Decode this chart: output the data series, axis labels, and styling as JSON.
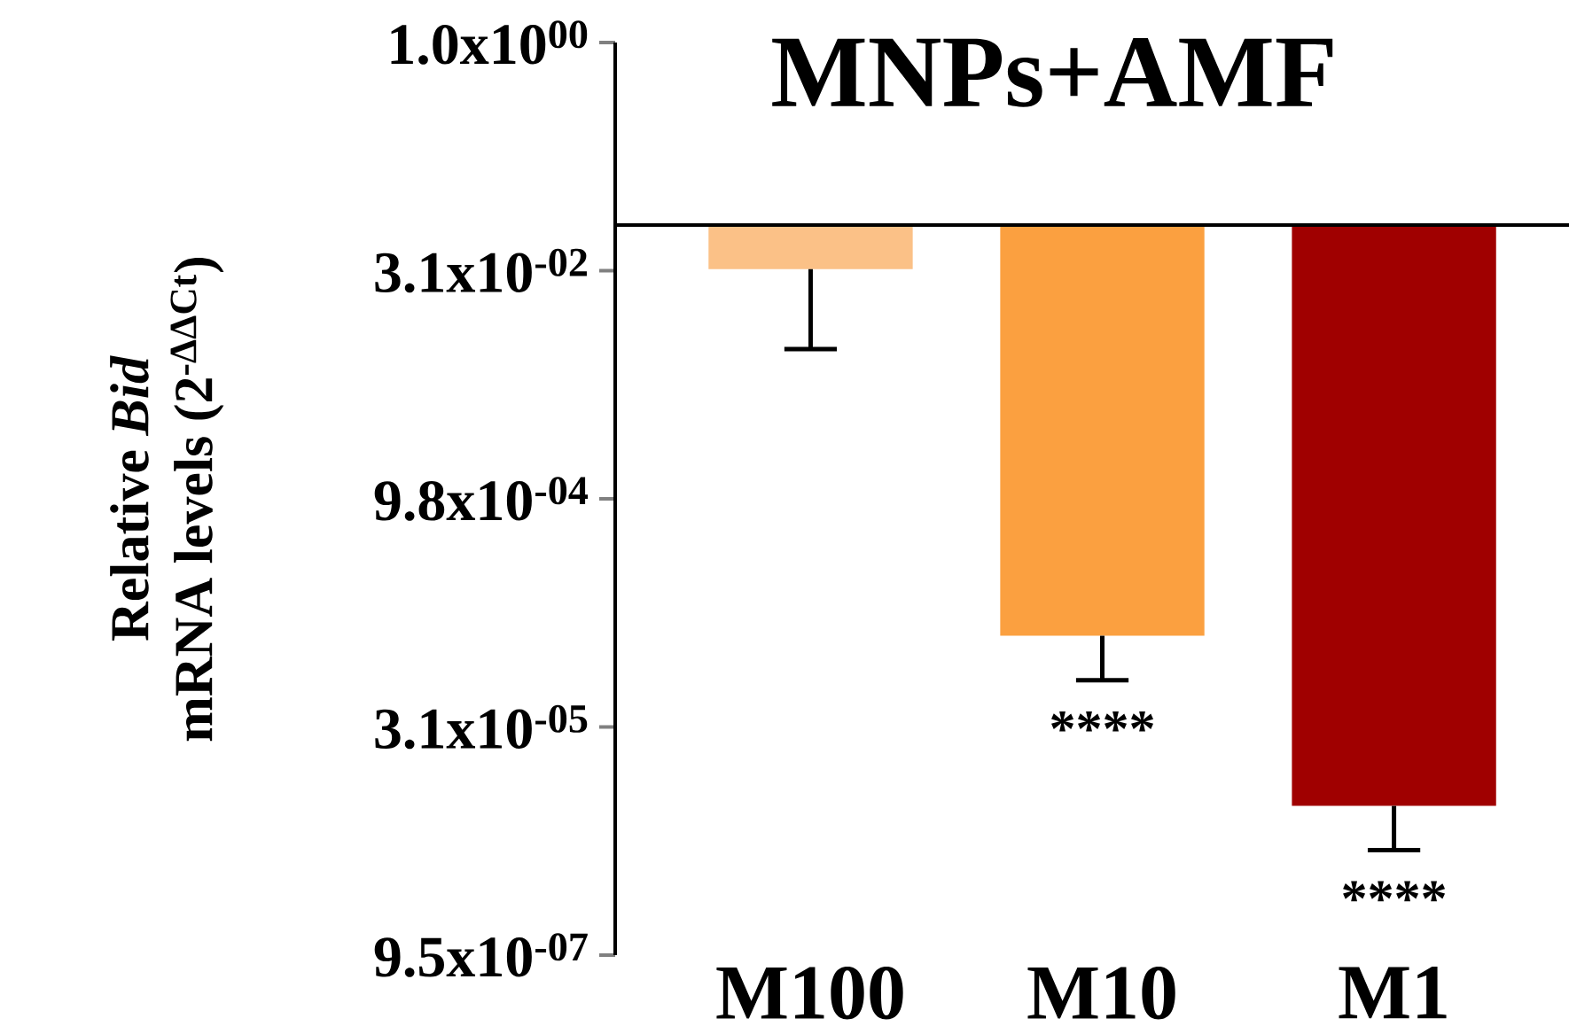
{
  "chart_data": {
    "type": "bar",
    "title": "MNPs+AMF",
    "ylabel": "Relative *Bid* mRNA levels (2$^{-ΔΔCt}$)",
    "categories": [
      "M100",
      "M10",
      "M1"
    ],
    "colors": [
      "#fbc187",
      "#fba040",
      "#a00000"
    ],
    "base": [
      0.0625,
      0.0625,
      0.0625
    ],
    "values": [
      -0.0305,
      -0.062378,
      -0.0624908
    ],
    "errors": [
      [
        0.0095,
        0.032
      ],
      [
        6.2e-05,
        0.000122
      ],
      [
        4.7e-06,
        9.2e-06
      ]
    ],
    "log": "y",
    "ylim": [
      9.5367431640625e-07,
      1
    ],
    "yticks": [
      {
        "value": 1,
        "label": "1.0x10$^{00}$"
      },
      {
        "value": 0.03125,
        "label": "3.1x10$^{-02}$"
      },
      {
        "value": 0.0009765625,
        "label": "9.8x10$^{-04}$"
      },
      {
        "value": 3.0517578125e-05,
        "label": "3.1x10$^{-05}$"
      },
      {
        "value": 9.5367431640625e-07,
        "label": "9.5x10$^{-07}$"
      }
    ],
    "ref_lines": [
      {
        "axis": "y",
        "value": 0.0625,
        "color": "#000000"
      }
    ],
    "annotations": [
      "****",
      "****"
    ]
  }
}
